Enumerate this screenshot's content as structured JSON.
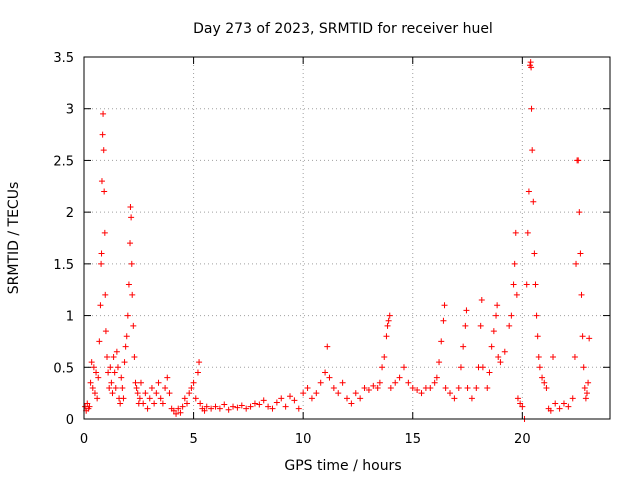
{
  "chart_data": {
    "type": "scatter",
    "title": "Day 273 of 2023, SRMTID for receiver huel",
    "xlabel": "GPS time / hours",
    "ylabel": "SRMTID / TECUs",
    "xlim": [
      0,
      24
    ],
    "ylim": [
      0,
      3.5
    ],
    "xticks": [
      0,
      5,
      10,
      15,
      20
    ],
    "yticks": [
      0,
      0.5,
      1,
      1.5,
      2,
      2.5,
      3,
      3.5
    ],
    "ytick_labels": [
      "0",
      "0.5",
      "1",
      "1.5",
      "2",
      "2.5",
      "3",
      "3.5"
    ],
    "grid": true,
    "marker": "+",
    "color": "#ff0000",
    "series": [
      {
        "name": "SRMTID",
        "points": [
          [
            0.05,
            0.12
          ],
          [
            0.1,
            0.08
          ],
          [
            0.15,
            0.15
          ],
          [
            0.2,
            0.1
          ],
          [
            0.25,
            0.12
          ],
          [
            0.3,
            0.35
          ],
          [
            0.35,
            0.55
          ],
          [
            0.4,
            0.3
          ],
          [
            0.45,
            0.5
          ],
          [
            0.5,
            0.25
          ],
          [
            0.55,
            0.45
          ],
          [
            0.6,
            0.2
          ],
          [
            0.65,
            0.4
          ],
          [
            0.7,
            0.75
          ],
          [
            0.75,
            1.1
          ],
          [
            0.78,
            1.5
          ],
          [
            0.8,
            1.6
          ],
          [
            0.82,
            2.3
          ],
          [
            0.85,
            2.75
          ],
          [
            0.87,
            2.95
          ],
          [
            0.9,
            2.6
          ],
          [
            0.92,
            2.2
          ],
          [
            0.95,
            1.8
          ],
          [
            0.97,
            1.2
          ],
          [
            1.0,
            0.85
          ],
          [
            1.05,
            0.6
          ],
          [
            1.1,
            0.45
          ],
          [
            1.15,
            0.3
          ],
          [
            1.2,
            0.5
          ],
          [
            1.25,
            0.35
          ],
          [
            1.3,
            0.25
          ],
          [
            1.35,
            0.6
          ],
          [
            1.4,
            0.45
          ],
          [
            1.45,
            0.3
          ],
          [
            1.5,
            0.65
          ],
          [
            1.55,
            0.5
          ],
          [
            1.6,
            0.2
          ],
          [
            1.65,
            0.15
          ],
          [
            1.7,
            0.4
          ],
          [
            1.75,
            0.3
          ],
          [
            1.8,
            0.2
          ],
          [
            1.85,
            0.55
          ],
          [
            1.9,
            0.7
          ],
          [
            1.95,
            0.8
          ],
          [
            2.0,
            1.0
          ],
          [
            2.05,
            1.3
          ],
          [
            2.1,
            1.7
          ],
          [
            2.12,
            2.05
          ],
          [
            2.15,
            1.95
          ],
          [
            2.18,
            1.5
          ],
          [
            2.2,
            1.2
          ],
          [
            2.25,
            0.9
          ],
          [
            2.3,
            0.6
          ],
          [
            2.35,
            0.35
          ],
          [
            2.4,
            0.3
          ],
          [
            2.45,
            0.25
          ],
          [
            2.5,
            0.15
          ],
          [
            2.55,
            0.2
          ],
          [
            2.6,
            0.35
          ],
          [
            2.7,
            0.15
          ],
          [
            2.8,
            0.25
          ],
          [
            2.9,
            0.1
          ],
          [
            3.0,
            0.2
          ],
          [
            3.1,
            0.3
          ],
          [
            3.2,
            0.15
          ],
          [
            3.3,
            0.25
          ],
          [
            3.4,
            0.35
          ],
          [
            3.5,
            0.2
          ],
          [
            3.6,
            0.15
          ],
          [
            3.7,
            0.3
          ],
          [
            3.8,
            0.4
          ],
          [
            3.9,
            0.25
          ],
          [
            4.0,
            0.1
          ],
          [
            4.1,
            0.08
          ],
          [
            4.2,
            0.05
          ],
          [
            4.3,
            0.1
          ],
          [
            4.4,
            0.06
          ],
          [
            4.5,
            0.12
          ],
          [
            4.6,
            0.2
          ],
          [
            4.7,
            0.15
          ],
          [
            4.8,
            0.25
          ],
          [
            4.9,
            0.3
          ],
          [
            5.0,
            0.35
          ],
          [
            5.1,
            0.2
          ],
          [
            5.2,
            0.45
          ],
          [
            5.25,
            0.55
          ],
          [
            5.3,
            0.15
          ],
          [
            5.4,
            0.1
          ],
          [
            5.5,
            0.08
          ],
          [
            5.6,
            0.12
          ],
          [
            5.8,
            0.1
          ],
          [
            6.0,
            0.12
          ],
          [
            6.2,
            0.1
          ],
          [
            6.4,
            0.14
          ],
          [
            6.6,
            0.09
          ],
          [
            6.8,
            0.12
          ],
          [
            7.0,
            0.11
          ],
          [
            7.2,
            0.13
          ],
          [
            7.4,
            0.1
          ],
          [
            7.6,
            0.12
          ],
          [
            7.8,
            0.15
          ],
          [
            8.0,
            0.14
          ],
          [
            8.2,
            0.18
          ],
          [
            8.4,
            0.12
          ],
          [
            8.6,
            0.1
          ],
          [
            8.8,
            0.16
          ],
          [
            9.0,
            0.2
          ],
          [
            9.2,
            0.12
          ],
          [
            9.4,
            0.22
          ],
          [
            9.6,
            0.18
          ],
          [
            9.8,
            0.1
          ],
          [
            10.0,
            0.25
          ],
          [
            10.2,
            0.3
          ],
          [
            10.4,
            0.2
          ],
          [
            10.6,
            0.25
          ],
          [
            10.8,
            0.35
          ],
          [
            11.0,
            0.45
          ],
          [
            11.1,
            0.7
          ],
          [
            11.2,
            0.4
          ],
          [
            11.4,
            0.3
          ],
          [
            11.6,
            0.25
          ],
          [
            11.8,
            0.35
          ],
          [
            12.0,
            0.2
          ],
          [
            12.2,
            0.15
          ],
          [
            12.4,
            0.25
          ],
          [
            12.6,
            0.2
          ],
          [
            12.8,
            0.3
          ],
          [
            13.0,
            0.28
          ],
          [
            13.2,
            0.32
          ],
          [
            13.4,
            0.3
          ],
          [
            13.5,
            0.35
          ],
          [
            13.6,
            0.5
          ],
          [
            13.7,
            0.6
          ],
          [
            13.8,
            0.8
          ],
          [
            13.85,
            0.9
          ],
          [
            13.9,
            0.95
          ],
          [
            13.95,
            1.0
          ],
          [
            14.0,
            0.3
          ],
          [
            14.2,
            0.35
          ],
          [
            14.4,
            0.4
          ],
          [
            14.6,
            0.5
          ],
          [
            14.8,
            0.35
          ],
          [
            15.0,
            0.3
          ],
          [
            15.2,
            0.28
          ],
          [
            15.4,
            0.25
          ],
          [
            15.6,
            0.3
          ],
          [
            15.8,
            0.3
          ],
          [
            16.0,
            0.35
          ],
          [
            16.1,
            0.4
          ],
          [
            16.2,
            0.55
          ],
          [
            16.3,
            0.75
          ],
          [
            16.4,
            0.95
          ],
          [
            16.45,
            1.1
          ],
          [
            16.5,
            0.3
          ],
          [
            16.7,
            0.25
          ],
          [
            16.9,
            0.2
          ],
          [
            17.1,
            0.3
          ],
          [
            17.2,
            0.5
          ],
          [
            17.3,
            0.7
          ],
          [
            17.4,
            0.9
          ],
          [
            17.45,
            1.05
          ],
          [
            17.5,
            0.3
          ],
          [
            17.7,
            0.2
          ],
          [
            17.9,
            0.3
          ],
          [
            18.0,
            0.5
          ],
          [
            18.1,
            0.9
          ],
          [
            18.15,
            1.15
          ],
          [
            18.2,
            0.5
          ],
          [
            18.4,
            0.3
          ],
          [
            18.5,
            0.45
          ],
          [
            18.6,
            0.7
          ],
          [
            18.7,
            0.85
          ],
          [
            18.8,
            1.0
          ],
          [
            18.85,
            1.1
          ],
          [
            18.9,
            0.6
          ],
          [
            19.0,
            0.55
          ],
          [
            19.2,
            0.65
          ],
          [
            19.4,
            0.9
          ],
          [
            19.5,
            1.0
          ],
          [
            19.6,
            1.3
          ],
          [
            19.65,
            1.5
          ],
          [
            19.7,
            1.8
          ],
          [
            19.75,
            1.2
          ],
          [
            19.8,
            0.2
          ],
          [
            19.9,
            0.15
          ],
          [
            20.0,
            0.12
          ],
          [
            20.1,
            0.0
          ],
          [
            20.2,
            1.3
          ],
          [
            20.25,
            1.8
          ],
          [
            20.3,
            2.2
          ],
          [
            20.35,
            3.42
          ],
          [
            20.38,
            3.45
          ],
          [
            20.4,
            3.4
          ],
          [
            20.42,
            3.0
          ],
          [
            20.45,
            2.6
          ],
          [
            20.5,
            2.1
          ],
          [
            20.55,
            1.6
          ],
          [
            20.6,
            1.3
          ],
          [
            20.65,
            1.0
          ],
          [
            20.7,
            0.8
          ],
          [
            20.75,
            0.6
          ],
          [
            20.8,
            0.5
          ],
          [
            20.9,
            0.4
          ],
          [
            21.0,
            0.35
          ],
          [
            21.1,
            0.3
          ],
          [
            21.2,
            0.1
          ],
          [
            21.3,
            0.08
          ],
          [
            21.4,
            0.6
          ],
          [
            21.5,
            0.15
          ],
          [
            21.7,
            0.1
          ],
          [
            21.9,
            0.15
          ],
          [
            22.1,
            0.12
          ],
          [
            22.3,
            0.2
          ],
          [
            22.4,
            0.6
          ],
          [
            22.45,
            1.5
          ],
          [
            22.5,
            2.5
          ],
          [
            22.55,
            2.5
          ],
          [
            22.6,
            2.0
          ],
          [
            22.65,
            1.6
          ],
          [
            22.7,
            1.2
          ],
          [
            22.75,
            0.8
          ],
          [
            22.8,
            0.5
          ],
          [
            22.85,
            0.3
          ],
          [
            22.9,
            0.2
          ],
          [
            22.95,
            0.25
          ],
          [
            23.0,
            0.35
          ],
          [
            23.05,
            0.78
          ]
        ]
      }
    ]
  }
}
